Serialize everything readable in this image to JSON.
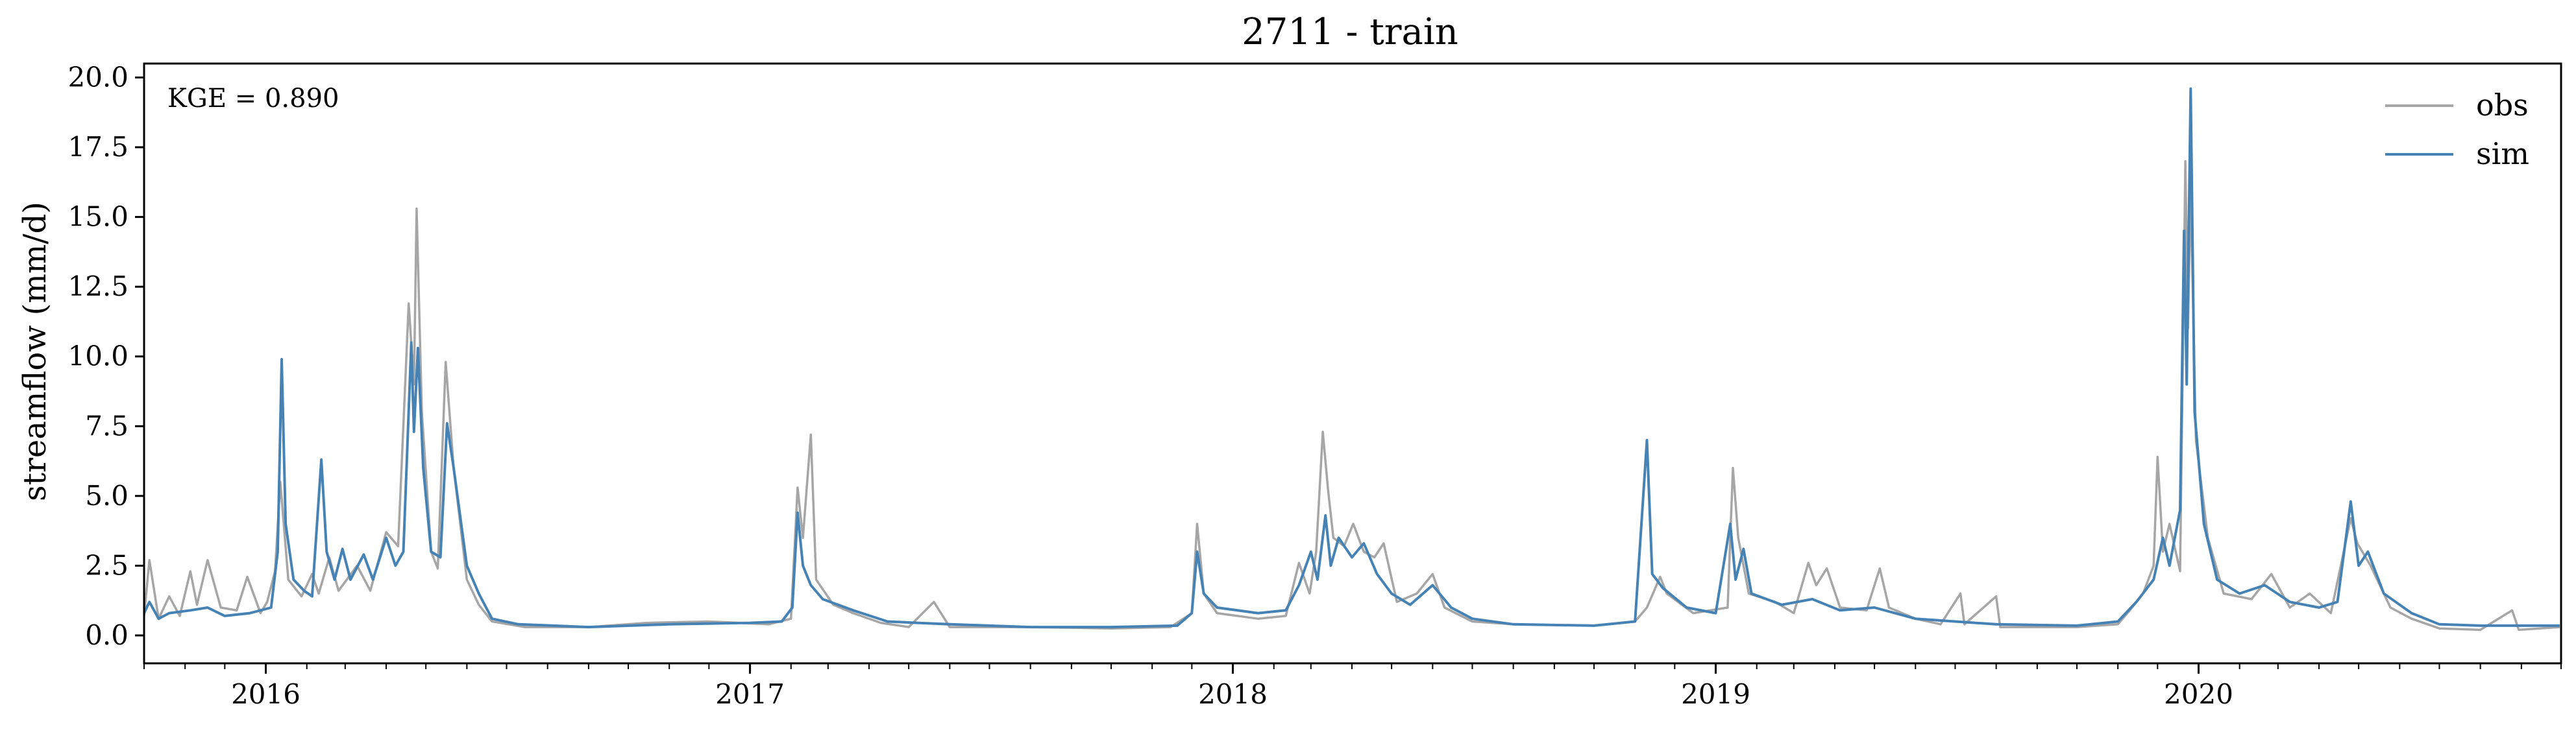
{
  "chart_data": {
    "type": "line",
    "title": "2711 - train",
    "ylabel": "streamflow (mm/d)",
    "xlabel": "",
    "x_range": [
      "2015-10-01",
      "2020-09-30"
    ],
    "ylim": [
      -1.0,
      20.5
    ],
    "yticks": [
      "0.0",
      "2.5",
      "5.0",
      "7.5",
      "10.0",
      "12.5",
      "15.0",
      "17.5",
      "20.0"
    ],
    "xticks": [
      "2016",
      "2017",
      "2018",
      "2019",
      "2020"
    ],
    "annotation": "KGE = 0.890",
    "grid": false,
    "legend_position": "top-right",
    "colors": {
      "obs": "#a6a6a6",
      "sim": "#4682b4"
    },
    "series": [
      {
        "name": "obs",
        "points": [
          [
            "2015-10-01",
            0.7
          ],
          [
            "2015-10-05",
            2.7
          ],
          [
            "2015-10-12",
            0.6
          ],
          [
            "2015-10-20",
            1.4
          ],
          [
            "2015-10-28",
            0.7
          ],
          [
            "2015-11-05",
            2.3
          ],
          [
            "2015-11-10",
            1.1
          ],
          [
            "2015-11-18",
            2.7
          ],
          [
            "2015-11-28",
            1.0
          ],
          [
            "2015-12-10",
            0.9
          ],
          [
            "2015-12-18",
            2.1
          ],
          [
            "2015-12-28",
            0.8
          ],
          [
            "2016-01-02",
            1.2
          ],
          [
            "2016-01-08",
            2.3
          ],
          [
            "2016-01-12",
            5.5
          ],
          [
            "2016-01-18",
            2.0
          ],
          [
            "2016-01-28",
            1.4
          ],
          [
            "2016-02-05",
            2.2
          ],
          [
            "2016-02-10",
            1.5
          ],
          [
            "2016-02-18",
            2.8
          ],
          [
            "2016-02-25",
            1.6
          ],
          [
            "2016-03-10",
            2.5
          ],
          [
            "2016-03-20",
            1.6
          ],
          [
            "2016-04-01",
            3.7
          ],
          [
            "2016-04-10",
            3.2
          ],
          [
            "2016-04-18",
            11.9
          ],
          [
            "2016-04-22",
            9.0
          ],
          [
            "2016-04-24",
            15.3
          ],
          [
            "2016-04-28",
            8.0
          ],
          [
            "2016-05-05",
            3.0
          ],
          [
            "2016-05-10",
            2.4
          ],
          [
            "2016-05-16",
            9.8
          ],
          [
            "2016-05-22",
            6.0
          ],
          [
            "2016-06-01",
            2.0
          ],
          [
            "2016-06-10",
            1.1
          ],
          [
            "2016-06-20",
            0.5
          ],
          [
            "2016-07-15",
            0.3
          ],
          [
            "2016-09-01",
            0.3
          ],
          [
            "2016-10-15",
            0.45
          ],
          [
            "2016-12-01",
            0.5
          ],
          [
            "2017-01-15",
            0.4
          ],
          [
            "2017-02-01",
            0.6
          ],
          [
            "2017-02-06",
            5.3
          ],
          [
            "2017-02-10",
            3.5
          ],
          [
            "2017-02-16",
            7.2
          ],
          [
            "2017-02-20",
            2.0
          ],
          [
            "2017-03-05",
            1.1
          ],
          [
            "2017-03-20",
            0.8
          ],
          [
            "2017-04-10",
            0.45
          ],
          [
            "2017-05-01",
            0.3
          ],
          [
            "2017-05-20",
            1.2
          ],
          [
            "2017-06-01",
            0.3
          ],
          [
            "2017-08-01",
            0.3
          ],
          [
            "2017-10-01",
            0.25
          ],
          [
            "2017-11-15",
            0.3
          ],
          [
            "2017-12-01",
            0.8
          ],
          [
            "2017-12-05",
            4.0
          ],
          [
            "2017-12-10",
            1.5
          ],
          [
            "2017-12-20",
            0.8
          ],
          [
            "2018-01-20",
            0.6
          ],
          [
            "2018-02-10",
            0.7
          ],
          [
            "2018-02-20",
            2.6
          ],
          [
            "2018-02-28",
            1.5
          ],
          [
            "2018-03-05",
            3.0
          ],
          [
            "2018-03-10",
            7.3
          ],
          [
            "2018-03-14",
            5.2
          ],
          [
            "2018-03-18",
            3.5
          ],
          [
            "2018-03-26",
            3.2
          ],
          [
            "2018-04-02",
            4.0
          ],
          [
            "2018-04-10",
            3.0
          ],
          [
            "2018-04-18",
            2.8
          ],
          [
            "2018-04-25",
            3.3
          ],
          [
            "2018-05-05",
            1.2
          ],
          [
            "2018-05-20",
            1.5
          ],
          [
            "2018-06-01",
            2.2
          ],
          [
            "2018-06-10",
            1.0
          ],
          [
            "2018-07-01",
            0.5
          ],
          [
            "2018-08-01",
            0.4
          ],
          [
            "2018-10-01",
            0.35
          ],
          [
            "2018-11-01",
            0.5
          ],
          [
            "2018-11-10",
            1.0
          ],
          [
            "2018-11-20",
            2.1
          ],
          [
            "2018-11-25",
            1.5
          ],
          [
            "2018-12-15",
            0.8
          ],
          [
            "2019-01-10",
            1.0
          ],
          [
            "2019-01-14",
            6.0
          ],
          [
            "2019-01-18",
            3.5
          ],
          [
            "2019-01-26",
            1.5
          ],
          [
            "2019-02-15",
            1.2
          ],
          [
            "2019-03-01",
            0.8
          ],
          [
            "2019-03-12",
            2.6
          ],
          [
            "2019-03-18",
            1.8
          ],
          [
            "2019-03-26",
            2.4
          ],
          [
            "2019-04-05",
            1.0
          ],
          [
            "2019-04-25",
            0.9
          ],
          [
            "2019-05-05",
            2.4
          ],
          [
            "2019-05-12",
            1.0
          ],
          [
            "2019-06-01",
            0.6
          ],
          [
            "2019-06-20",
            0.4
          ],
          [
            "2019-07-05",
            1.5
          ],
          [
            "2019-07-08",
            0.4
          ],
          [
            "2019-08-01",
            1.4
          ],
          [
            "2019-08-04",
            0.3
          ],
          [
            "2019-10-01",
            0.3
          ],
          [
            "2019-11-01",
            0.4
          ],
          [
            "2019-11-10",
            0.9
          ],
          [
            "2019-11-20",
            1.5
          ],
          [
            "2019-11-28",
            2.5
          ],
          [
            "2019-12-01",
            6.4
          ],
          [
            "2019-12-05",
            3.0
          ],
          [
            "2019-12-10",
            4.0
          ],
          [
            "2019-12-18",
            2.3
          ],
          [
            "2019-12-22",
            17.0
          ],
          [
            "2019-12-24",
            11.0
          ],
          [
            "2019-12-26",
            16.0
          ],
          [
            "2019-12-30",
            7.0
          ],
          [
            "2020-01-08",
            3.5
          ],
          [
            "2020-01-20",
            1.5
          ],
          [
            "2020-02-10",
            1.3
          ],
          [
            "2020-02-25",
            2.2
          ],
          [
            "2020-03-10",
            1.0
          ],
          [
            "2020-03-25",
            1.5
          ],
          [
            "2020-04-10",
            0.8
          ],
          [
            "2020-04-25",
            4.2
          ],
          [
            "2020-04-30",
            3.3
          ],
          [
            "2020-05-10",
            2.5
          ],
          [
            "2020-05-25",
            1.0
          ],
          [
            "2020-06-10",
            0.6
          ],
          [
            "2020-07-01",
            0.25
          ],
          [
            "2020-08-01",
            0.2
          ],
          [
            "2020-08-25",
            0.9
          ],
          [
            "2020-08-30",
            0.2
          ],
          [
            "2020-09-30",
            0.3
          ]
        ]
      },
      {
        "name": "sim",
        "points": [
          [
            "2015-10-01",
            0.8
          ],
          [
            "2015-10-05",
            1.2
          ],
          [
            "2015-10-12",
            0.6
          ],
          [
            "2015-10-20",
            0.8
          ],
          [
            "2015-11-05",
            0.9
          ],
          [
            "2015-11-18",
            1.0
          ],
          [
            "2015-12-01",
            0.7
          ],
          [
            "2015-12-20",
            0.8
          ],
          [
            "2016-01-05",
            1.0
          ],
          [
            "2016-01-10",
            3.0
          ],
          [
            "2016-01-13",
            9.9
          ],
          [
            "2016-01-16",
            4.0
          ],
          [
            "2016-01-22",
            2.0
          ],
          [
            "2016-01-30",
            1.6
          ],
          [
            "2016-02-05",
            1.4
          ],
          [
            "2016-02-12",
            6.3
          ],
          [
            "2016-02-16",
            3.0
          ],
          [
            "2016-02-22",
            2.0
          ],
          [
            "2016-02-28",
            3.1
          ],
          [
            "2016-03-05",
            2.0
          ],
          [
            "2016-03-15",
            2.9
          ],
          [
            "2016-03-22",
            2.0
          ],
          [
            "2016-04-01",
            3.5
          ],
          [
            "2016-04-08",
            2.5
          ],
          [
            "2016-04-14",
            3.0
          ],
          [
            "2016-04-20",
            10.5
          ],
          [
            "2016-04-22",
            7.3
          ],
          [
            "2016-04-25",
            10.3
          ],
          [
            "2016-04-29",
            6.0
          ],
          [
            "2016-05-05",
            3.0
          ],
          [
            "2016-05-12",
            2.8
          ],
          [
            "2016-05-17",
            7.6
          ],
          [
            "2016-05-22",
            6.0
          ],
          [
            "2016-06-01",
            2.5
          ],
          [
            "2016-06-10",
            1.5
          ],
          [
            "2016-06-20",
            0.6
          ],
          [
            "2016-07-10",
            0.4
          ],
          [
            "2016-09-01",
            0.3
          ],
          [
            "2016-11-01",
            0.4
          ],
          [
            "2017-01-01",
            0.45
          ],
          [
            "2017-01-25",
            0.5
          ],
          [
            "2017-02-02",
            1.0
          ],
          [
            "2017-02-06",
            4.4
          ],
          [
            "2017-02-10",
            2.5
          ],
          [
            "2017-02-16",
            1.8
          ],
          [
            "2017-02-25",
            1.3
          ],
          [
            "2017-03-20",
            0.9
          ],
          [
            "2017-04-15",
            0.5
          ],
          [
            "2017-06-01",
            0.4
          ],
          [
            "2017-08-01",
            0.3
          ],
          [
            "2017-10-01",
            0.3
          ],
          [
            "2017-11-20",
            0.35
          ],
          [
            "2017-12-01",
            0.8
          ],
          [
            "2017-12-05",
            3.0
          ],
          [
            "2017-12-10",
            1.5
          ],
          [
            "2017-12-20",
            1.0
          ],
          [
            "2018-01-20",
            0.8
          ],
          [
            "2018-02-10",
            0.9
          ],
          [
            "2018-02-20",
            1.8
          ],
          [
            "2018-03-01",
            3.0
          ],
          [
            "2018-03-06",
            2.0
          ],
          [
            "2018-03-12",
            4.3
          ],
          [
            "2018-03-16",
            2.5
          ],
          [
            "2018-03-22",
            3.5
          ],
          [
            "2018-04-01",
            2.8
          ],
          [
            "2018-04-10",
            3.3
          ],
          [
            "2018-04-20",
            2.2
          ],
          [
            "2018-05-01",
            1.5
          ],
          [
            "2018-05-15",
            1.1
          ],
          [
            "2018-06-01",
            1.8
          ],
          [
            "2018-06-15",
            1.0
          ],
          [
            "2018-07-01",
            0.6
          ],
          [
            "2018-08-01",
            0.4
          ],
          [
            "2018-10-01",
            0.35
          ],
          [
            "2018-11-01",
            0.5
          ],
          [
            "2018-11-10",
            7.0
          ],
          [
            "2018-11-14",
            2.2
          ],
          [
            "2018-11-22",
            1.7
          ],
          [
            "2018-12-10",
            1.0
          ],
          [
            "2019-01-01",
            0.8
          ],
          [
            "2019-01-12",
            4.0
          ],
          [
            "2019-01-16",
            2.0
          ],
          [
            "2019-01-22",
            3.1
          ],
          [
            "2019-01-28",
            1.5
          ],
          [
            "2019-02-20",
            1.1
          ],
          [
            "2019-03-15",
            1.3
          ],
          [
            "2019-04-05",
            0.9
          ],
          [
            "2019-05-01",
            1.0
          ],
          [
            "2019-06-01",
            0.6
          ],
          [
            "2019-07-01",
            0.5
          ],
          [
            "2019-08-01",
            0.4
          ],
          [
            "2019-10-01",
            0.35
          ],
          [
            "2019-11-01",
            0.5
          ],
          [
            "2019-11-15",
            1.2
          ],
          [
            "2019-11-28",
            2.0
          ],
          [
            "2019-12-05",
            3.5
          ],
          [
            "2019-12-10",
            2.5
          ],
          [
            "2019-12-18",
            4.5
          ],
          [
            "2019-12-21",
            14.5
          ],
          [
            "2019-12-23",
            9.0
          ],
          [
            "2019-12-26",
            19.6
          ],
          [
            "2019-12-29",
            8.0
          ],
          [
            "2020-01-05",
            4.0
          ],
          [
            "2020-01-15",
            2.0
          ],
          [
            "2020-02-01",
            1.5
          ],
          [
            "2020-02-20",
            1.8
          ],
          [
            "2020-03-10",
            1.2
          ],
          [
            "2020-04-01",
            1.0
          ],
          [
            "2020-04-15",
            1.2
          ],
          [
            "2020-04-25",
            4.8
          ],
          [
            "2020-05-01",
            2.5
          ],
          [
            "2020-05-08",
            3.0
          ],
          [
            "2020-05-20",
            1.5
          ],
          [
            "2020-06-10",
            0.8
          ],
          [
            "2020-07-01",
            0.4
          ],
          [
            "2020-08-01",
            0.35
          ],
          [
            "2020-09-30",
            0.35
          ]
        ]
      }
    ]
  }
}
